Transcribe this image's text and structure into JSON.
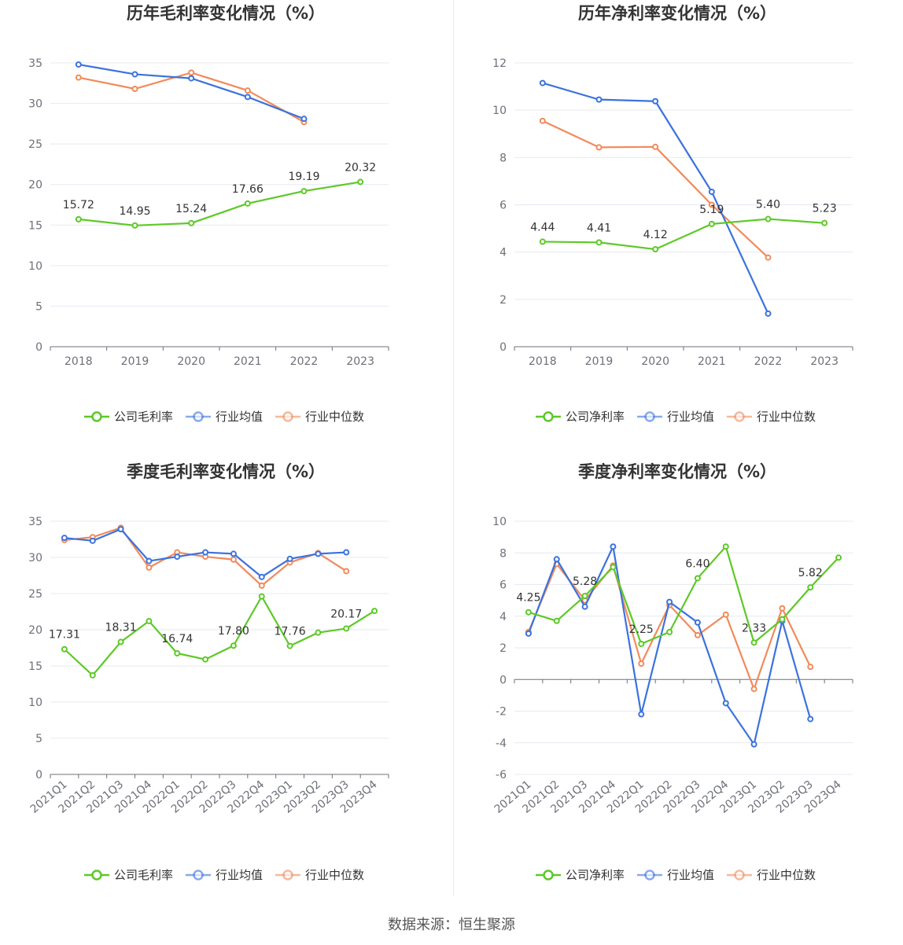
{
  "colors": {
    "company": "#5dc927",
    "industry_avg": "#3b72de",
    "industry_median": "#f28a5b",
    "grid": "#e6e9f2",
    "axis": "#6e7079"
  },
  "source_text": "数据来源：恒生聚源",
  "chart_data": [
    {
      "type": "line",
      "title": "历年毛利率变化情况（%）",
      "x": [
        "2018",
        "2019",
        "2020",
        "2021",
        "2022",
        "2023"
      ],
      "ylim": [
        0,
        35
      ],
      "yticks": [
        0,
        5,
        10,
        15,
        20,
        25,
        30,
        35
      ],
      "grid": true,
      "legend_position": "bottom",
      "series": [
        {
          "name": "公司毛利率",
          "color": "#5dc927",
          "values": [
            15.72,
            14.95,
            15.24,
            17.66,
            19.19,
            20.32
          ],
          "labels": [
            "15.72",
            "14.95",
            "15.24",
            "17.66",
            "19.19",
            "20.32"
          ]
        },
        {
          "name": "行业均值",
          "color": "#3b72de",
          "values": [
            34.8,
            33.6,
            33.1,
            30.8,
            28.1,
            null
          ]
        },
        {
          "name": "行业中位数",
          "color": "#f28a5b",
          "values": [
            33.2,
            31.8,
            33.8,
            31.6,
            27.7,
            null
          ]
        }
      ]
    },
    {
      "type": "line",
      "title": "历年净利率变化情况（%）",
      "x": [
        "2018",
        "2019",
        "2020",
        "2021",
        "2022",
        "2023"
      ],
      "ylim": [
        0,
        12
      ],
      "yticks": [
        0,
        2,
        4,
        6,
        8,
        10,
        12
      ],
      "grid": true,
      "legend_position": "bottom",
      "series": [
        {
          "name": "公司净利率",
          "color": "#5dc927",
          "values": [
            4.44,
            4.41,
            4.12,
            5.19,
            5.4,
            5.23
          ],
          "labels": [
            "4.44",
            "4.41",
            "4.12",
            "5.19",
            "5.40",
            "5.23"
          ]
        },
        {
          "name": "行业均值",
          "color": "#3b72de",
          "values": [
            11.15,
            10.45,
            10.38,
            6.55,
            1.4,
            null
          ]
        },
        {
          "name": "行业中位数",
          "color": "#f28a5b",
          "values": [
            9.55,
            8.43,
            8.45,
            6.0,
            3.77,
            null
          ]
        }
      ]
    },
    {
      "type": "line",
      "title": "季度毛利率变化情况（%）",
      "x": [
        "2021Q1",
        "2021Q2",
        "2021Q3",
        "2021Q4",
        "2022Q1",
        "2022Q2",
        "2022Q3",
        "2022Q4",
        "2023Q1",
        "2023Q2",
        "2023Q3",
        "2023Q4"
      ],
      "ylim": [
        0,
        35
      ],
      "yticks": [
        0,
        5,
        10,
        15,
        20,
        25,
        30,
        35
      ],
      "grid": true,
      "legend_position": "bottom",
      "series": [
        {
          "name": "公司毛利率",
          "color": "#5dc927",
          "values": [
            17.31,
            13.7,
            18.31,
            21.2,
            16.74,
            15.9,
            17.8,
            24.6,
            17.76,
            19.6,
            20.17,
            22.6
          ],
          "labels": [
            "17.31",
            "",
            "18.31",
            "",
            "16.74",
            "",
            "17.80",
            "",
            "17.76",
            "",
            "20.17",
            ""
          ]
        },
        {
          "name": "行业均值",
          "color": "#3b72de",
          "values": [
            32.7,
            32.3,
            33.9,
            29.5,
            30.1,
            30.7,
            30.5,
            27.3,
            29.8,
            30.5,
            30.7,
            null
          ]
        },
        {
          "name": "行业中位数",
          "color": "#f28a5b",
          "values": [
            32.4,
            32.8,
            34.1,
            28.6,
            30.7,
            30.1,
            29.7,
            26.1,
            29.3,
            30.6,
            28.1,
            null
          ]
        }
      ]
    },
    {
      "type": "line",
      "title": "季度净利率变化情况（%）",
      "x": [
        "2021Q1",
        "2021Q2",
        "2021Q3",
        "2021Q4",
        "2022Q1",
        "2022Q2",
        "2022Q3",
        "2022Q4",
        "2023Q1",
        "2023Q2",
        "2023Q3",
        "2023Q4"
      ],
      "ylim": [
        -6,
        10
      ],
      "yticks": [
        -6,
        -4,
        -2,
        0,
        2,
        4,
        6,
        8,
        10
      ],
      "grid": true,
      "legend_position": "bottom",
      "series": [
        {
          "name": "公司净利率",
          "color": "#5dc927",
          "values": [
            4.25,
            3.7,
            5.28,
            7.1,
            2.25,
            3.0,
            6.4,
            8.4,
            2.33,
            3.8,
            5.82,
            7.7
          ],
          "labels": [
            "4.25",
            "",
            "5.28",
            "",
            "2.25",
            "",
            "6.40",
            "",
            "2.33",
            "",
            "5.82",
            ""
          ]
        },
        {
          "name": "行业均值",
          "color": "#3b72de",
          "values": [
            2.9,
            7.6,
            4.6,
            8.4,
            -2.2,
            4.9,
            3.6,
            -1.5,
            -4.1,
            3.7,
            -2.5,
            null
          ]
        },
        {
          "name": "行业中位数",
          "color": "#f28a5b",
          "values": [
            3.0,
            7.3,
            5.0,
            7.2,
            1.0,
            4.7,
            2.8,
            4.1,
            -0.6,
            4.5,
            0.8,
            null
          ]
        }
      ]
    }
  ]
}
